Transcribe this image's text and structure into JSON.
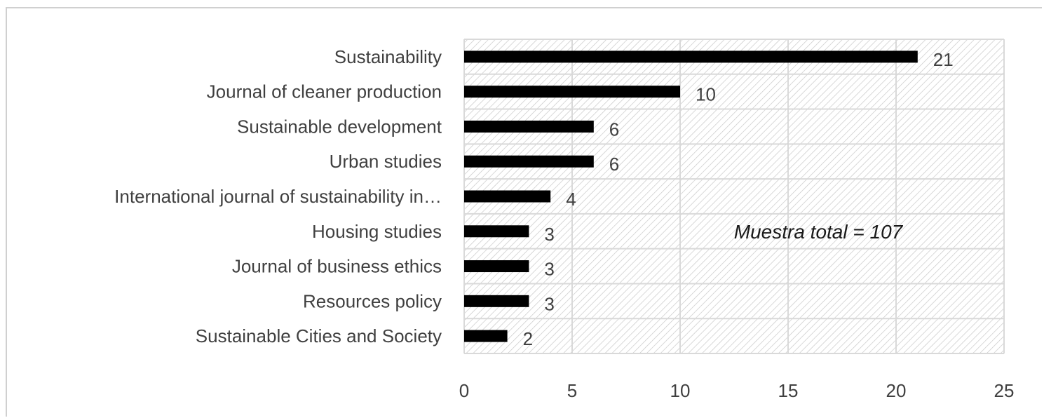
{
  "chart_data": {
    "type": "bar",
    "orientation": "horizontal",
    "categories": [
      "Sustainability",
      "Journal of cleaner production",
      "Sustainable development",
      "Urban studies",
      "International journal of sustainability in…",
      "Housing studies",
      "Journal of business ethics",
      "Resources policy",
      "Sustainable Cities and Society"
    ],
    "values": [
      21,
      10,
      6,
      6,
      4,
      3,
      3,
      3,
      2
    ],
    "data_labels": [
      "21",
      "10",
      "6",
      "6",
      "4",
      "3",
      "3",
      "3",
      "2"
    ],
    "xlim": [
      0,
      25
    ],
    "x_ticks": [
      0,
      5,
      10,
      15,
      20,
      25
    ],
    "x_tick_labels": [
      "0",
      "5",
      "10",
      "15",
      "20",
      "25"
    ],
    "grid": true,
    "plot_background": "diagonal hatch",
    "annotation": "Muestra total = 107",
    "colors": {
      "bar": "#000000",
      "grid": "#d9d9d9",
      "hatch": "#c8c8c8",
      "text": "#404040"
    }
  }
}
